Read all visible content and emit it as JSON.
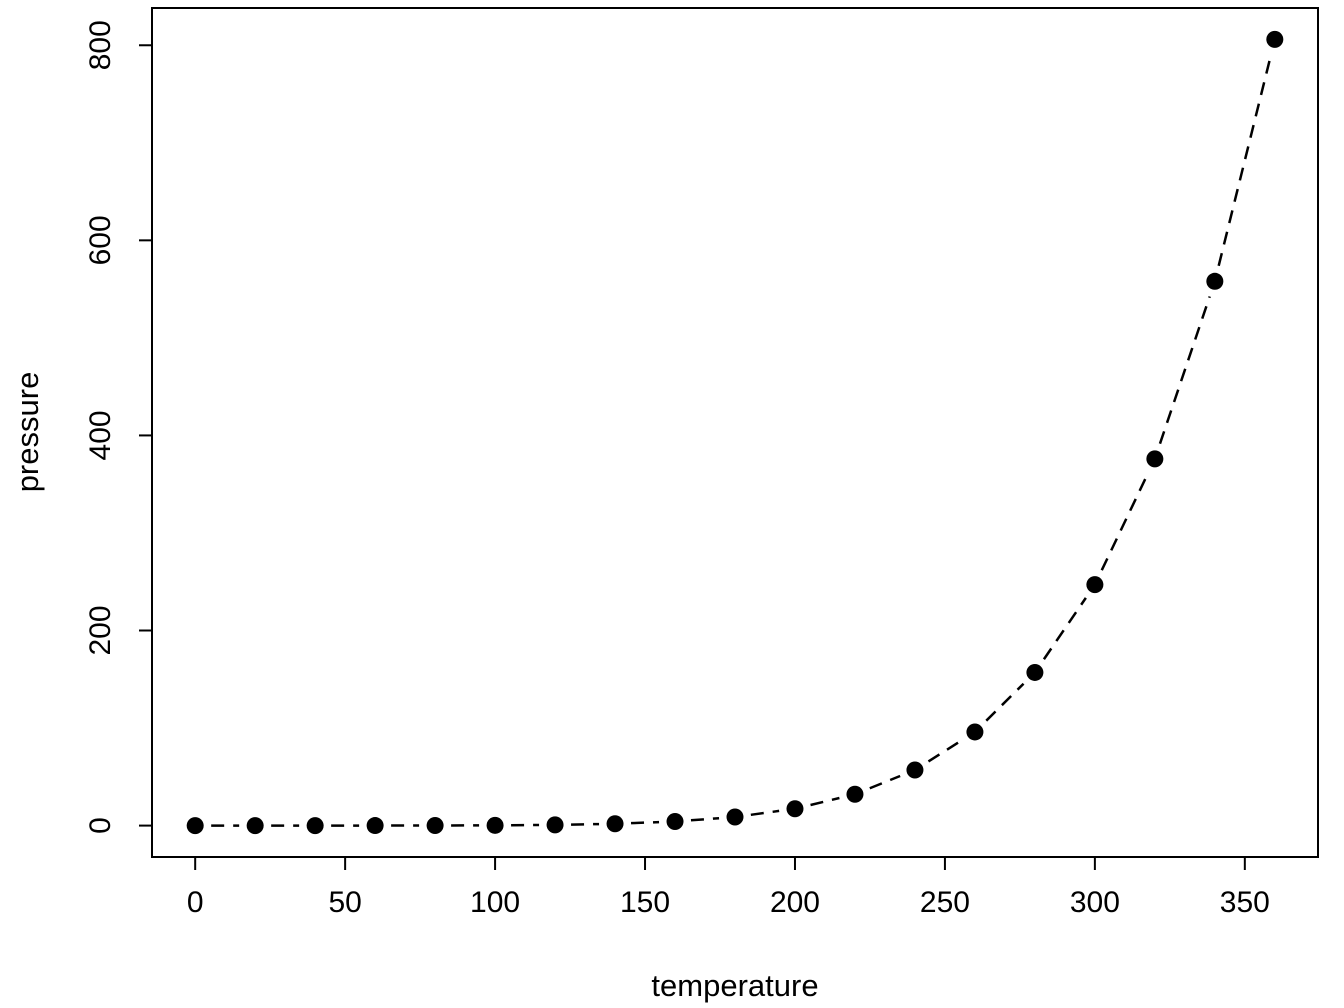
{
  "chart_data": {
    "type": "scatter",
    "subtype": "points-with-dashed-line",
    "title": "",
    "xlabel": "temperature",
    "ylabel": "pressure",
    "x": [
      0,
      20,
      40,
      60,
      80,
      100,
      120,
      140,
      160,
      180,
      200,
      220,
      240,
      260,
      280,
      300,
      320,
      340,
      360
    ],
    "y": [
      0.0002,
      0.0012,
      0.006,
      0.03,
      0.09,
      0.27,
      0.75,
      1.85,
      4.2,
      8.8,
      17.3,
      32.1,
      57.0,
      96.0,
      157.0,
      247.0,
      376.0,
      558.0,
      806.0
    ],
    "x_ticks": [
      0,
      50,
      100,
      150,
      200,
      250,
      300,
      350
    ],
    "y_ticks": [
      0,
      200,
      400,
      600,
      800
    ],
    "x_range": [
      -14.4,
      374.4
    ],
    "y_range": [
      -32.2,
      838.2
    ],
    "line_style": "dashed",
    "marker": "filled-circle",
    "color": "#000000",
    "background": "#ffffff",
    "grid": false,
    "legend": null
  }
}
